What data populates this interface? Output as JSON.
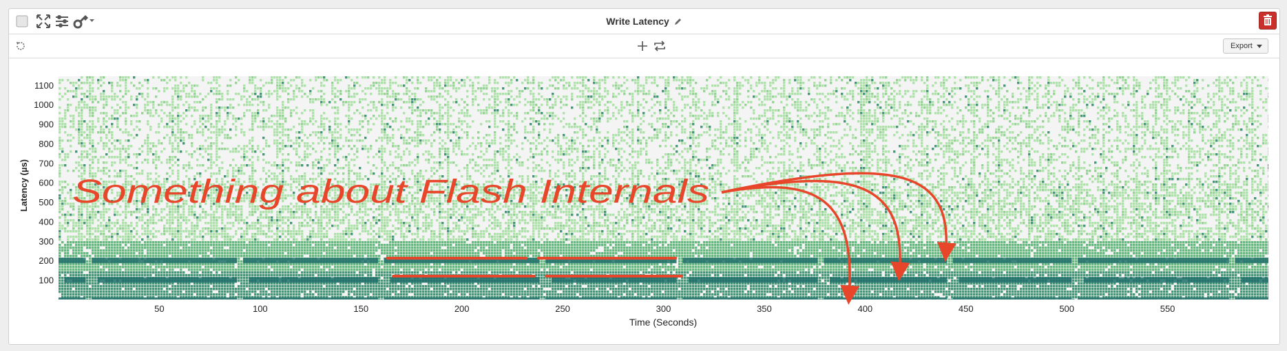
{
  "panel": {
    "title": "Write Latency",
    "export_label": "Export"
  },
  "icons": {
    "checkbox": "checkbox-icon",
    "fullscreen": "expand-arrows-icon",
    "settings": "sliders-icon",
    "key": "key-icon",
    "edit": "pencil-icon",
    "delete": "trash-icon",
    "reset": "refresh-icon",
    "add": "plus-icon",
    "swap": "swap-arrows-icon"
  },
  "colors": {
    "heat_low": "#a8e6a3",
    "heat_mid": "#5cbf7a",
    "heat_high": "#1f6e6a",
    "annotation": "#e8462a",
    "delete": "#c9302c"
  },
  "chart_data": {
    "type": "heatmap",
    "xlabel": "Time (Seconds)",
    "ylabel": "Latency (µs)",
    "xlim": [
      0,
      600
    ],
    "ylim": [
      0,
      1100
    ],
    "x_ticks": [
      50,
      100,
      150,
      200,
      250,
      300,
      350,
      400,
      450,
      500,
      550
    ],
    "y_ticks": [
      100,
      200,
      300,
      400,
      500,
      600,
      700,
      800,
      900,
      1000,
      1100
    ],
    "dense_bands_us": [
      0,
      100,
      200
    ],
    "band_breaks_s": [
      15,
      90,
      160,
      240,
      308,
      378,
      442,
      504,
      582
    ],
    "annotation": {
      "text": "Something about Flash Internals",
      "underlines": [
        {
          "x": [
            163,
            232
          ],
          "y": 212
        },
        {
          "x": [
            238,
            306
          ],
          "y": 212
        },
        {
          "x": [
            166,
            236
          ],
          "y": 120
        },
        {
          "x": [
            242,
            309
          ],
          "y": 120
        }
      ],
      "arrow_targets": [
        {
          "x": 392,
          "y": 10
        },
        {
          "x": 417,
          "y": 130
        },
        {
          "x": 440,
          "y": 230
        }
      ]
    }
  }
}
